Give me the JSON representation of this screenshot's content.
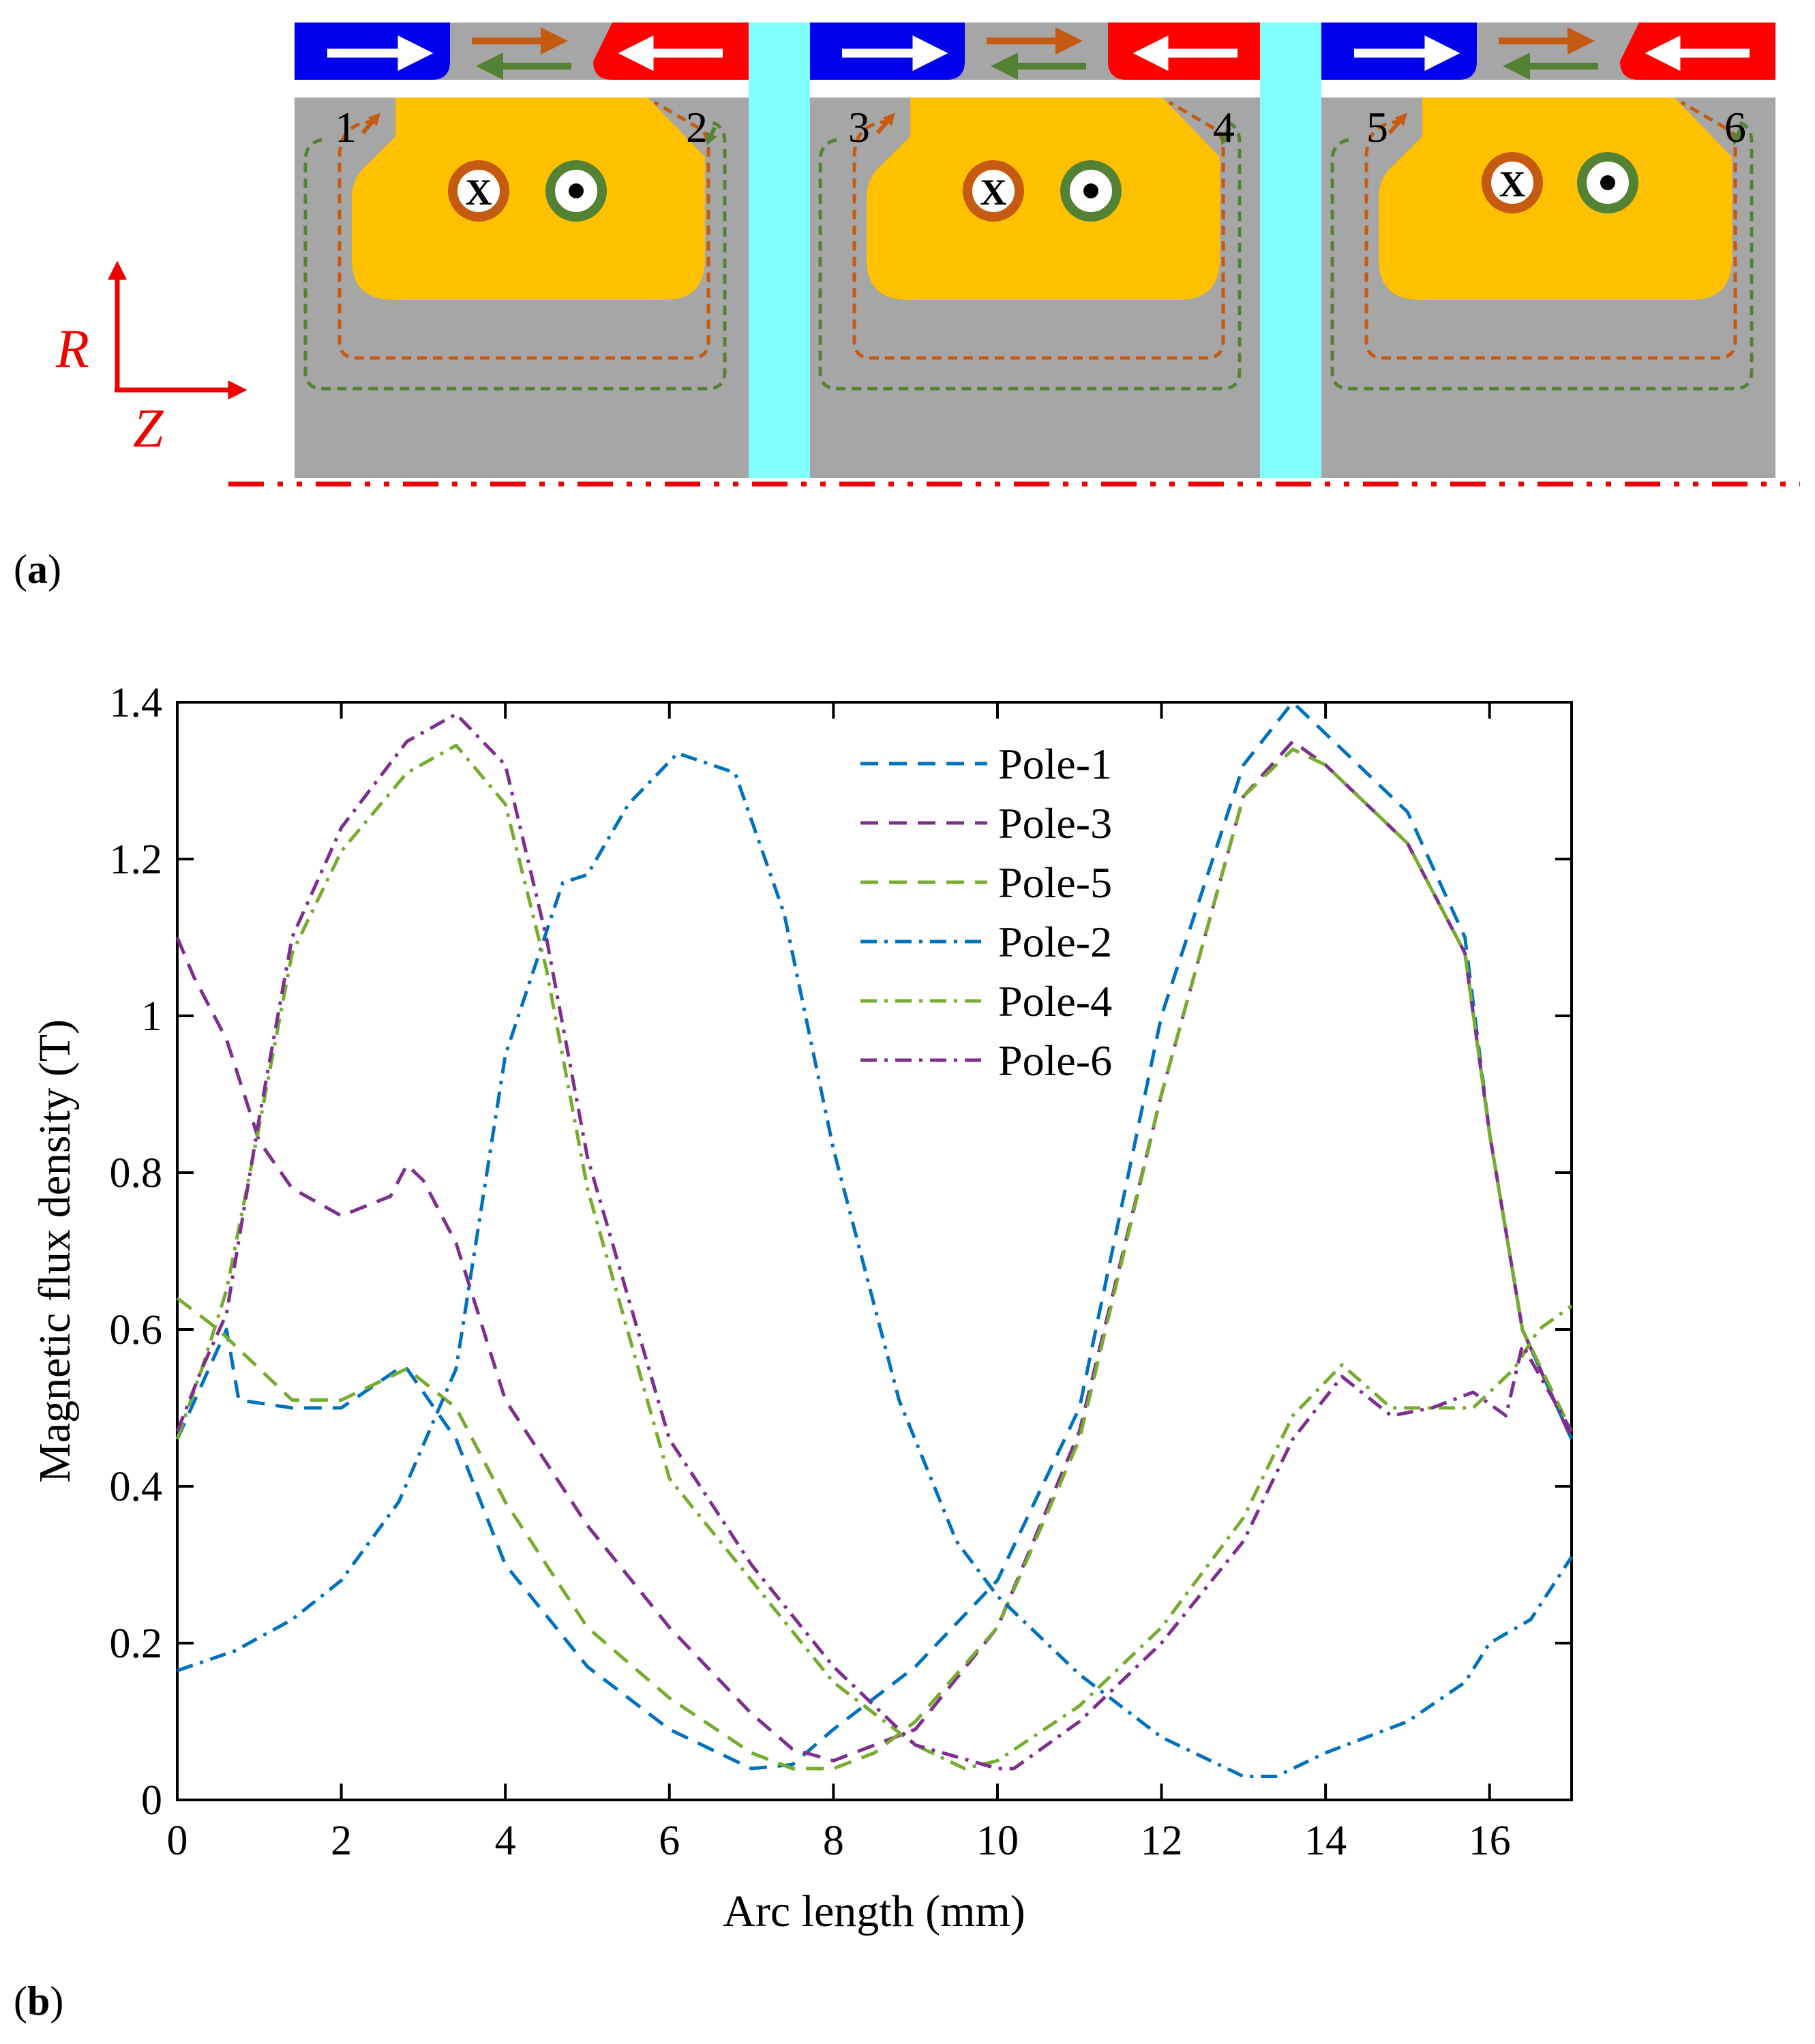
{
  "panel_a": {
    "label_open": "(",
    "label_letter": "a",
    "label_close": ")",
    "axis_r": "R",
    "axis_z": "Z",
    "pole_numbers": [
      "1",
      "2",
      "3",
      "4",
      "5",
      "6"
    ],
    "coil_in_symbol": "X",
    "colors": {
      "magnet_blue": "#0000ee",
      "magnet_red": "#ff0000",
      "iron_gray": "#a6a6a6",
      "spacer_cyan": "#80ffff",
      "coil_yellow": "#ffc000",
      "flux_orange": "#c55a11",
      "flux_green": "#548235",
      "axis_red": "#ee0000"
    }
  },
  "panel_b": {
    "label_open": "(",
    "label_letter": "b",
    "label_close": ")"
  },
  "chart_data": {
    "type": "line",
    "xlabel": "Arc length (mm)",
    "ylabel": "Magnetic flux density (T)",
    "xlim": [
      0,
      17
    ],
    "ylim": [
      0,
      1.4
    ],
    "xticks": [
      0,
      2,
      4,
      6,
      8,
      10,
      12,
      14,
      16
    ],
    "yticks": [
      0,
      0.2,
      0.4,
      0.6,
      0.8,
      1,
      1.2,
      1.4
    ],
    "xtick_labels": [
      "0",
      "2",
      "4",
      "6",
      "8",
      "10",
      "12",
      "14",
      "16"
    ],
    "ytick_labels": [
      "0",
      "0.2",
      "0.4",
      "0.6",
      "0.8",
      "1",
      "1.2",
      "1.4"
    ],
    "legend_position": "top-center",
    "series": [
      {
        "name": "Pole-1",
        "color": "#0072bd",
        "dash": "dashed",
        "x": [
          0,
          0.6,
          0.75,
          1.4,
          2,
          2.7,
          2.8,
          3.4,
          4,
          5,
          6,
          7,
          7.5,
          8,
          9,
          10,
          11,
          12,
          13,
          13.6,
          14,
          15,
          15.7,
          16,
          16.4,
          17
        ],
        "y": [
          0.46,
          0.6,
          0.51,
          0.5,
          0.5,
          0.55,
          0.55,
          0.46,
          0.3,
          0.17,
          0.09,
          0.04,
          0.045,
          0.09,
          0.17,
          0.28,
          0.5,
          1.0,
          1.32,
          1.4,
          1.36,
          1.26,
          1.1,
          0.85,
          0.6,
          0.46
        ]
      },
      {
        "name": "Pole-3",
        "color": "#7e2f8e",
        "dash": "dashed",
        "x": [
          0,
          0.2,
          0.6,
          1,
          1.4,
          2,
          2.6,
          2.8,
          3,
          3.4,
          4,
          5,
          6,
          7,
          7.5,
          8,
          9,
          10,
          11,
          12,
          13,
          13.6,
          14,
          15,
          15.7,
          16,
          16.4,
          17
        ],
        "y": [
          1.1,
          1.05,
          0.97,
          0.84,
          0.78,
          0.745,
          0.77,
          0.81,
          0.79,
          0.71,
          0.51,
          0.35,
          0.22,
          0.11,
          0.065,
          0.05,
          0.09,
          0.22,
          0.47,
          0.9,
          1.28,
          1.35,
          1.32,
          1.22,
          1.08,
          0.85,
          0.6,
          0.46
        ]
      },
      {
        "name": "Pole-5",
        "color": "#77ac30",
        "dash": "dashed",
        "x": [
          0,
          0.5,
          1,
          1.4,
          2,
          2.6,
          2.8,
          3.4,
          4,
          5,
          6,
          7,
          7.5,
          8,
          8.5,
          9,
          10,
          11,
          12,
          13,
          13.6,
          14,
          15,
          15.7,
          16,
          16.4,
          17
        ],
        "y": [
          0.64,
          0.6,
          0.55,
          0.51,
          0.51,
          0.54,
          0.55,
          0.5,
          0.38,
          0.22,
          0.13,
          0.06,
          0.04,
          0.04,
          0.06,
          0.1,
          0.22,
          0.46,
          0.9,
          1.28,
          1.34,
          1.32,
          1.22,
          1.08,
          0.85,
          0.6,
          0.47
        ]
      },
      {
        "name": "Pole-2",
        "color": "#0072bd",
        "dash": "dashdot",
        "x": [
          0,
          0.7,
          1.4,
          2,
          2.7,
          3.4,
          4,
          4.7,
          5,
          5.5,
          6.1,
          6.8,
          7.4,
          8,
          8.8,
          9.5,
          10,
          11,
          12,
          13,
          13.4,
          14,
          15,
          15.7,
          16,
          16.5,
          17
        ],
        "y": [
          0.165,
          0.19,
          0.23,
          0.28,
          0.38,
          0.55,
          0.95,
          1.17,
          1.18,
          1.27,
          1.335,
          1.31,
          1.13,
          0.83,
          0.51,
          0.33,
          0.26,
          0.16,
          0.08,
          0.03,
          0.03,
          0.06,
          0.1,
          0.15,
          0.2,
          0.23,
          0.31
        ]
      },
      {
        "name": "Pole-4",
        "color": "#77ac30",
        "dash": "dashdot",
        "x": [
          0,
          0.3,
          0.6,
          1,
          1.4,
          2,
          2.8,
          3.4,
          4,
          4.5,
          5,
          6,
          7,
          8,
          9,
          9.6,
          10,
          11,
          12,
          13,
          13.6,
          14.2,
          14.8,
          15.3,
          15.8,
          16.3,
          16.6,
          17
        ],
        "y": [
          0.46,
          0.55,
          0.65,
          0.86,
          1.08,
          1.21,
          1.31,
          1.345,
          1.27,
          1.06,
          0.78,
          0.41,
          0.28,
          0.15,
          0.07,
          0.04,
          0.05,
          0.12,
          0.22,
          0.36,
          0.49,
          0.555,
          0.5,
          0.5,
          0.5,
          0.55,
          0.6,
          0.63
        ]
      },
      {
        "name": "Pole-6",
        "color": "#7e2f8e",
        "dash": "dashdot",
        "x": [
          0,
          0.3,
          0.6,
          1,
          1.4,
          2,
          2.8,
          3.4,
          4,
          4.5,
          5,
          6,
          7,
          8,
          9,
          10,
          10.2,
          11,
          12,
          13,
          13.6,
          14.2,
          14.8,
          15.3,
          15.8,
          16.2,
          16.4,
          17
        ],
        "y": [
          0.47,
          0.55,
          0.62,
          0.87,
          1.1,
          1.24,
          1.35,
          1.385,
          1.32,
          1.1,
          0.82,
          0.46,
          0.3,
          0.17,
          0.07,
          0.04,
          0.04,
          0.1,
          0.2,
          0.33,
          0.46,
          0.54,
          0.49,
          0.5,
          0.52,
          0.49,
          0.58,
          0.47
        ]
      }
    ]
  }
}
